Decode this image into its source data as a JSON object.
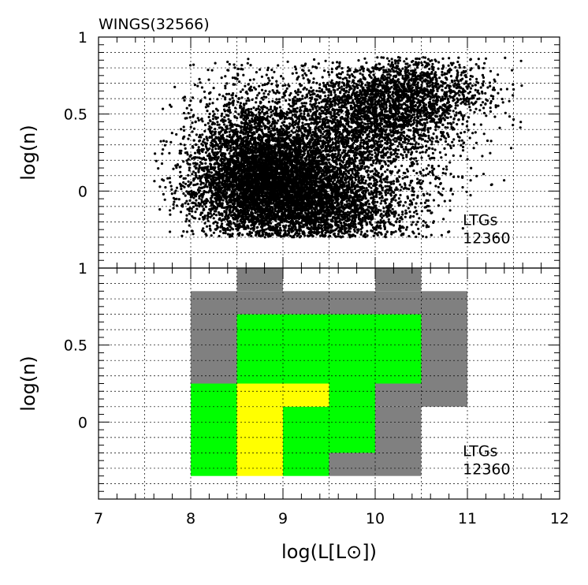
{
  "chart_data": [
    {
      "type": "scatter",
      "title": "WINGS(32566)",
      "xlabel": "log(L[L⊙])",
      "ylabel": "log(n)",
      "xlim": [
        7,
        12
      ],
      "ylim": [
        -0.5,
        1
      ],
      "x_ticks": [
        "7",
        "8",
        "9",
        "10",
        "11",
        "12"
      ],
      "y_ticks": [
        "0",
        "0.5",
        "1"
      ],
      "grid": true,
      "annotation": [
        "LTGs",
        "12360"
      ],
      "point_color": "#000000",
      "cluster_centers": [
        {
          "x": 8.9,
          "y": 0.05,
          "sx": 0.45,
          "sy": 0.2,
          "count": 5200
        },
        {
          "x": 8.6,
          "y": 0.25,
          "sx": 0.3,
          "sy": 0.25,
          "count": 1400
        },
        {
          "x": 9.9,
          "y": 0.45,
          "sx": 0.5,
          "sy": 0.18,
          "count": 2600
        },
        {
          "x": 10.4,
          "y": 0.65,
          "sx": 0.45,
          "sy": 0.12,
          "count": 1200
        },
        {
          "x": 9.6,
          "y": -0.1,
          "sx": 0.5,
          "sy": 0.15,
          "count": 1960
        }
      ],
      "x_data_range": [
        7.6,
        11.6
      ],
      "y_data_range": [
        -0.3,
        0.87
      ]
    },
    {
      "type": "heatmap",
      "xlabel": "log(L[L⊙])",
      "ylabel": "log(n)",
      "xlim": [
        7,
        12
      ],
      "ylim": [
        -0.5,
        1
      ],
      "x_ticks": [
        "7",
        "8",
        "9",
        "10",
        "11",
        "12"
      ],
      "y_ticks": [
        "0",
        "0.5",
        "1"
      ],
      "grid": true,
      "annotation": [
        "LTGs",
        "12360"
      ],
      "level_colors": {
        "low": "#808080",
        "mid": "#00ff00",
        "high": "#ffff00"
      },
      "cells": [
        {
          "x": [
            8.5,
            9.0
          ],
          "y": [
            0.85,
            1.0
          ],
          "level": "low"
        },
        {
          "x": [
            10.0,
            10.5
          ],
          "y": [
            0.85,
            1.0
          ],
          "level": "low"
        },
        {
          "x": [
            8.0,
            11.0
          ],
          "y": [
            0.7,
            0.85
          ],
          "level": "low"
        },
        {
          "x": [
            8.0,
            8.5
          ],
          "y": [
            0.25,
            0.7
          ],
          "level": "low"
        },
        {
          "x": [
            10.5,
            11.0
          ],
          "y": [
            0.1,
            0.7
          ],
          "level": "low"
        },
        {
          "x": [
            10.0,
            10.5
          ],
          "y": [
            0.1,
            0.25
          ],
          "level": "low"
        },
        {
          "x": [
            10.0,
            10.5
          ],
          "y": [
            -0.35,
            0.1
          ],
          "level": "low"
        },
        {
          "x": [
            9.5,
            10.0
          ],
          "y": [
            -0.35,
            -0.2
          ],
          "level": "low"
        },
        {
          "x": [
            8.5,
            10.5
          ],
          "y": [
            0.25,
            0.7
          ],
          "level": "mid"
        },
        {
          "x": [
            8.0,
            8.5
          ],
          "y": [
            -0.35,
            0.25
          ],
          "level": "mid"
        },
        {
          "x": [
            9.5,
            10.0
          ],
          "y": [
            -0.2,
            0.25
          ],
          "level": "mid"
        },
        {
          "x": [
            9.0,
            9.5
          ],
          "y": [
            -0.35,
            0.1
          ],
          "level": "mid"
        },
        {
          "x": [
            8.5,
            9.5
          ],
          "y": [
            0.1,
            0.25
          ],
          "level": "high"
        },
        {
          "x": [
            8.5,
            9.0
          ],
          "y": [
            -0.35,
            0.1
          ],
          "level": "high"
        }
      ]
    }
  ]
}
